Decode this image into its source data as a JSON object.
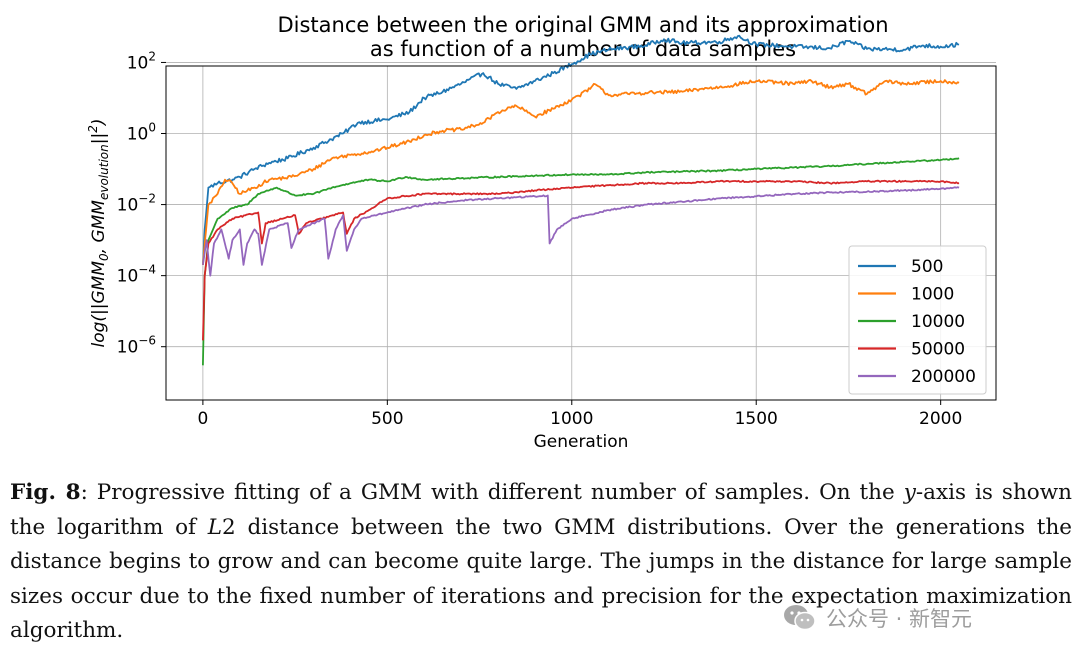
{
  "chart_data": {
    "type": "line",
    "title_line1": "Distance between the original GMM and its approximation",
    "title_line2": "as function of a number of data samples",
    "xlabel": "Generation",
    "ylabel": "log(||GMM0, GMMevolution||^2)",
    "ylabel_parts": {
      "pre": "log(||GMM",
      "sub0": "0",
      "mid": ", GMM",
      "sub1": "evolution",
      "post": "||",
      "sup": "2",
      "end": ")"
    },
    "xlim": [
      -100,
      2150
    ],
    "ylog_lim": [
      -7.5,
      1.9
    ],
    "yscale": "log",
    "grid": true,
    "legend_position": "lower-right",
    "x_ticks": [
      0,
      500,
      1000,
      1500,
      2000
    ],
    "x_tick_labels": [
      "0",
      "500",
      "1000",
      "1500",
      "2000"
    ],
    "y_tick_exponents": [
      2,
      0,
      -2,
      -4,
      -6
    ],
    "y_tick_labels": [
      "10",
      "10",
      "10",
      "10",
      "10"
    ],
    "y_tick_exp_labels": [
      "2",
      "0",
      "−2",
      "−4",
      "−6"
    ],
    "series": [
      {
        "name": "500",
        "color": "#1f77b4",
        "points": [
          [
            0,
            0.0002
          ],
          [
            5,
            0.002
          ],
          [
            15,
            0.03
          ],
          [
            40,
            0.04
          ],
          [
            80,
            0.05
          ],
          [
            100,
            0.06
          ],
          [
            140,
            0.1
          ],
          [
            180,
            0.15
          ],
          [
            230,
            0.2
          ],
          [
            300,
            0.4
          ],
          [
            380,
            1.0
          ],
          [
            420,
            2.0
          ],
          [
            500,
            2.5
          ],
          [
            560,
            4.0
          ],
          [
            600,
            10.0
          ],
          [
            650,
            15.0
          ],
          [
            700,
            25.0
          ],
          [
            760,
            50.0
          ],
          [
            800,
            25.0
          ],
          [
            850,
            18.0
          ],
          [
            900,
            30.0
          ],
          [
            950,
            50.0
          ],
          [
            1000,
            90.0
          ],
          [
            1050,
            170.0
          ],
          [
            1100,
            230.0
          ],
          [
            1200,
            300.0
          ],
          [
            1250,
            450.0
          ],
          [
            1300,
            350.0
          ],
          [
            1400,
            380.0
          ],
          [
            1450,
            550.0
          ],
          [
            1500,
            320.0
          ],
          [
            1600,
            280.0
          ],
          [
            1700,
            250.0
          ],
          [
            1750,
            400.0
          ],
          [
            1800,
            240.0
          ],
          [
            1900,
            230.0
          ],
          [
            1950,
            300.0
          ],
          [
            2000,
            280.0
          ],
          [
            2050,
            320.0
          ]
        ]
      },
      {
        "name": "1000",
        "color": "#ff7f0e",
        "points": [
          [
            0,
            0.0002
          ],
          [
            5,
            0.0008
          ],
          [
            15,
            0.01
          ],
          [
            40,
            0.02
          ],
          [
            60,
            0.05
          ],
          [
            80,
            0.04
          ],
          [
            100,
            0.02
          ],
          [
            140,
            0.03
          ],
          [
            180,
            0.05
          ],
          [
            240,
            0.06
          ],
          [
            300,
            0.1
          ],
          [
            350,
            0.2
          ],
          [
            400,
            0.25
          ],
          [
            450,
            0.3
          ],
          [
            500,
            0.4
          ],
          [
            560,
            0.6
          ],
          [
            600,
            0.9
          ],
          [
            650,
            1.2
          ],
          [
            700,
            1.3
          ],
          [
            760,
            2.0
          ],
          [
            800,
            4.0
          ],
          [
            850,
            6.0
          ],
          [
            900,
            3.0
          ],
          [
            950,
            5.0
          ],
          [
            1000,
            9.0
          ],
          [
            1050,
            18.0
          ],
          [
            1060,
            25.0
          ],
          [
            1100,
            12.0
          ],
          [
            1200,
            14.0
          ],
          [
            1300,
            15.0
          ],
          [
            1350,
            18.0
          ],
          [
            1400,
            20.0
          ],
          [
            1500,
            30.0
          ],
          [
            1600,
            25.0
          ],
          [
            1650,
            30.0
          ],
          [
            1700,
            20.0
          ],
          [
            1750,
            25.0
          ],
          [
            1800,
            13.0
          ],
          [
            1850,
            30.0
          ],
          [
            1900,
            25.0
          ],
          [
            2000,
            30.0
          ],
          [
            2050,
            27.0
          ]
        ]
      },
      {
        "name": "10000",
        "color": "#2ca02c",
        "points": [
          [
            0,
            3e-07
          ],
          [
            5,
            0.0001
          ],
          [
            15,
            0.001
          ],
          [
            40,
            0.004
          ],
          [
            80,
            0.008
          ],
          [
            120,
            0.01
          ],
          [
            150,
            0.02
          ],
          [
            200,
            0.03
          ],
          [
            250,
            0.018
          ],
          [
            300,
            0.02
          ],
          [
            350,
            0.03
          ],
          [
            400,
            0.04
          ],
          [
            450,
            0.05
          ],
          [
            500,
            0.045
          ],
          [
            550,
            0.06
          ],
          [
            600,
            0.05
          ],
          [
            700,
            0.055
          ],
          [
            800,
            0.06
          ],
          [
            900,
            0.065
          ],
          [
            1000,
            0.07
          ],
          [
            1100,
            0.07
          ],
          [
            1200,
            0.08
          ],
          [
            1300,
            0.085
          ],
          [
            1400,
            0.09
          ],
          [
            1500,
            0.1
          ],
          [
            1600,
            0.11
          ],
          [
            1700,
            0.12
          ],
          [
            1800,
            0.14
          ],
          [
            1900,
            0.16
          ],
          [
            2000,
            0.18
          ],
          [
            2050,
            0.2
          ]
        ]
      },
      {
        "name": "50000",
        "color": "#d62728",
        "points": [
          [
            0,
            1.5e-06
          ],
          [
            5,
            0.0001
          ],
          [
            15,
            0.0008
          ],
          [
            40,
            0.002
          ],
          [
            80,
            0.004
          ],
          [
            150,
            0.006
          ],
          [
            160,
            0.0008
          ],
          [
            170,
            0.003
          ],
          [
            250,
            0.005
          ],
          [
            260,
            0.0015
          ],
          [
            280,
            0.003
          ],
          [
            380,
            0.006
          ],
          [
            390,
            0.0015
          ],
          [
            410,
            0.004
          ],
          [
            450,
            0.007
          ],
          [
            500,
            0.015
          ],
          [
            600,
            0.02
          ],
          [
            700,
            0.02
          ],
          [
            800,
            0.02
          ],
          [
            900,
            0.025
          ],
          [
            1000,
            0.03
          ],
          [
            1100,
            0.035
          ],
          [
            1200,
            0.04
          ],
          [
            1300,
            0.04
          ],
          [
            1400,
            0.045
          ],
          [
            1500,
            0.045
          ],
          [
            1600,
            0.045
          ],
          [
            1700,
            0.04
          ],
          [
            1800,
            0.045
          ],
          [
            1900,
            0.045
          ],
          [
            2000,
            0.045
          ],
          [
            2050,
            0.04
          ]
        ]
      },
      {
        "name": "200000",
        "color": "#9467bd",
        "points": [
          [
            0,
            0.0002
          ],
          [
            10,
            0.001
          ],
          [
            20,
            0.0001
          ],
          [
            30,
            0.0008
          ],
          [
            50,
            0.002
          ],
          [
            70,
            0.0003
          ],
          [
            80,
            0.001
          ],
          [
            100,
            0.002
          ],
          [
            110,
            0.0002
          ],
          [
            120,
            0.0008
          ],
          [
            140,
            0.002
          ],
          [
            150,
            0.0015
          ],
          [
            160,
            0.0002
          ],
          [
            180,
            0.002
          ],
          [
            230,
            0.003
          ],
          [
            240,
            0.0006
          ],
          [
            260,
            0.002
          ],
          [
            330,
            0.004
          ],
          [
            340,
            0.0003
          ],
          [
            360,
            0.002
          ],
          [
            380,
            0.005
          ],
          [
            390,
            0.0005
          ],
          [
            410,
            0.002
          ],
          [
            430,
            0.004
          ],
          [
            500,
            0.006
          ],
          [
            600,
            0.01
          ],
          [
            700,
            0.013
          ],
          [
            800,
            0.015
          ],
          [
            900,
            0.017
          ],
          [
            935,
            0.018
          ],
          [
            940,
            0.0008
          ],
          [
            960,
            0.002
          ],
          [
            1000,
            0.004
          ],
          [
            1100,
            0.007
          ],
          [
            1200,
            0.01
          ],
          [
            1300,
            0.012
          ],
          [
            1400,
            0.015
          ],
          [
            1500,
            0.017
          ],
          [
            1600,
            0.02
          ],
          [
            1700,
            0.022
          ],
          [
            1800,
            0.023
          ],
          [
            1900,
            0.025
          ],
          [
            2000,
            0.028
          ],
          [
            2050,
            0.03
          ]
        ]
      }
    ]
  },
  "caption": {
    "label": "Fig. 8",
    "text_1": ": Progressive fitting of a GMM with different number of samples. On the ",
    "y_italic": "y",
    "text_2": "-axis is shown the logarithm of ",
    "l2_italic": "L",
    "l2_rest": "2",
    "text_3": " distance between the two GMM distributions. Over the generations the distance begins to grow and can become quite large. The jumps in the distance for large sample sizes occur due to the fixed number of iterations and precision for the expectation maximization algorithm."
  },
  "watermark": {
    "icon": "wechat-icon",
    "text": "公众号 · 新智元",
    "color": "#8c8c8c"
  }
}
